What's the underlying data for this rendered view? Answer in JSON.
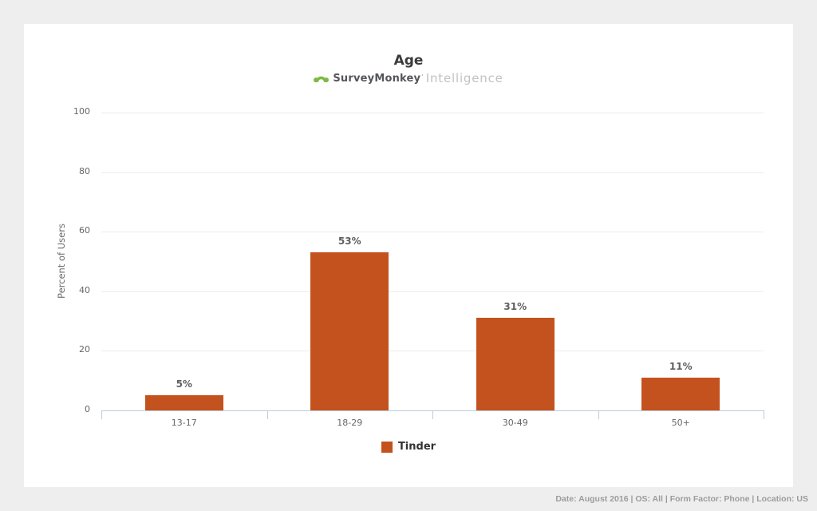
{
  "window": {
    "background_color": "#eeeeee",
    "card_color": "#ffffff"
  },
  "header": {
    "title": "Age",
    "logo": {
      "brand": "SurveyMonkey",
      "mark": "·",
      "suffix": "Intelligence",
      "monkey_color": "#7eb942",
      "brand_color": "#54565b",
      "suffix_color": "#c2c2c2"
    }
  },
  "chart_data": {
    "type": "bar",
    "title": "Age",
    "categories": [
      "13-17",
      "18-29",
      "30-49",
      "50+"
    ],
    "series": [
      {
        "name": "Tinder",
        "values": [
          5,
          53,
          31,
          11
        ],
        "color": "#c4521e"
      }
    ],
    "value_labels": [
      "5%",
      "53%",
      "31%",
      "11%"
    ],
    "xlabel": "",
    "ylabel": "Percent of Users",
    "ylim": [
      0,
      100
    ],
    "yticks": [
      0,
      20,
      40,
      60,
      80,
      100
    ],
    "grid": true,
    "legend_position": "bottom",
    "colors": {
      "grid": "#ececec",
      "axis": "#bccdd9",
      "tick_text": "#666666",
      "value_text": "#5f5f5f"
    }
  },
  "legend": {
    "label": "Tinder",
    "swatch_color": "#c4521e"
  },
  "footer": {
    "text": "Date: August 2016 | OS: All | Form Factor: Phone | Location: US"
  }
}
